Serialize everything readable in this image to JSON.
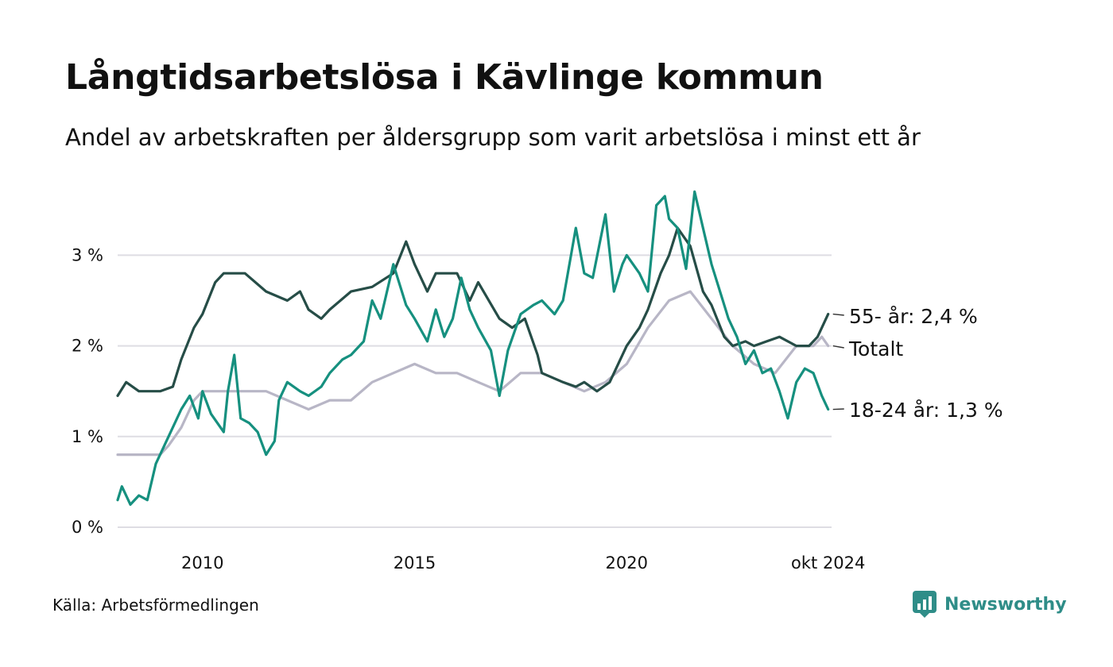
{
  "title": "Långtidsarbetslösa i Kävlinge kommun",
  "subtitle": "Andel av arbetskraften per åldersgrupp som varit arbetslösa i minst ett år",
  "source": "Källa: Arbetsförmedlingen",
  "brand": "Newsworthy",
  "colors": {
    "age55": "#264d47",
    "total": "#b8b6c6",
    "age18_24": "#16907f",
    "grid": "#dedde3",
    "brand": "#2f8d88"
  },
  "chart_data": {
    "type": "line",
    "ylim": [
      0,
      3.8
    ],
    "xlim": [
      2008.0,
      2024.83
    ],
    "y_ticks": [
      {
        "value": 0,
        "label": "0 %"
      },
      {
        "value": 1,
        "label": "1 %"
      },
      {
        "value": 2,
        "label": "2 %"
      },
      {
        "value": 3,
        "label": "3 %"
      }
    ],
    "x_ticks": [
      {
        "value": 2010,
        "label": "2010"
      },
      {
        "value": 2015,
        "label": "2015"
      },
      {
        "value": 2020,
        "label": "2020"
      },
      {
        "value": 2024.75,
        "label": "okt 2024"
      }
    ],
    "grid": true,
    "series": [
      {
        "key": "total",
        "name": "Totalt",
        "end_label": "Totalt",
        "points": [
          [
            2008.0,
            0.8
          ],
          [
            2008.5,
            0.8
          ],
          [
            2009.0,
            0.8
          ],
          [
            2009.2,
            0.9
          ],
          [
            2009.5,
            1.1
          ],
          [
            2009.8,
            1.4
          ],
          [
            2010.0,
            1.5
          ],
          [
            2010.5,
            1.5
          ],
          [
            2011.0,
            1.5
          ],
          [
            2011.5,
            1.5
          ],
          [
            2012.0,
            1.4
          ],
          [
            2012.5,
            1.3
          ],
          [
            2013.0,
            1.4
          ],
          [
            2013.5,
            1.4
          ],
          [
            2014.0,
            1.6
          ],
          [
            2014.5,
            1.7
          ],
          [
            2015.0,
            1.8
          ],
          [
            2015.5,
            1.7
          ],
          [
            2016.0,
            1.7
          ],
          [
            2016.5,
            1.6
          ],
          [
            2017.0,
            1.5
          ],
          [
            2017.5,
            1.7
          ],
          [
            2018.0,
            1.7
          ],
          [
            2018.5,
            1.6
          ],
          [
            2019.0,
            1.5
          ],
          [
            2019.5,
            1.6
          ],
          [
            2020.0,
            1.8
          ],
          [
            2020.5,
            2.2
          ],
          [
            2021.0,
            2.5
          ],
          [
            2021.5,
            2.6
          ],
          [
            2022.0,
            2.3
          ],
          [
            2022.5,
            2.0
          ],
          [
            2023.0,
            1.8
          ],
          [
            2023.5,
            1.7
          ],
          [
            2024.0,
            2.0
          ],
          [
            2024.4,
            2.0
          ],
          [
            2024.6,
            2.1
          ],
          [
            2024.75,
            2.0
          ]
        ]
      },
      {
        "key": "age55",
        "name": "55- år",
        "end_label": "55- år: 2,4 %",
        "points": [
          [
            2008.0,
            1.45
          ],
          [
            2008.2,
            1.6
          ],
          [
            2008.5,
            1.5
          ],
          [
            2009.0,
            1.5
          ],
          [
            2009.3,
            1.55
          ],
          [
            2009.5,
            1.85
          ],
          [
            2009.8,
            2.2
          ],
          [
            2010.0,
            2.35
          ],
          [
            2010.3,
            2.7
          ],
          [
            2010.5,
            2.8
          ],
          [
            2011.0,
            2.8
          ],
          [
            2011.5,
            2.6
          ],
          [
            2012.0,
            2.5
          ],
          [
            2012.3,
            2.6
          ],
          [
            2012.5,
            2.4
          ],
          [
            2012.8,
            2.3
          ],
          [
            2013.0,
            2.4
          ],
          [
            2013.5,
            2.6
          ],
          [
            2014.0,
            2.65
          ],
          [
            2014.5,
            2.8
          ],
          [
            2014.8,
            3.15
          ],
          [
            2015.0,
            2.9
          ],
          [
            2015.3,
            2.6
          ],
          [
            2015.5,
            2.8
          ],
          [
            2016.0,
            2.8
          ],
          [
            2016.3,
            2.5
          ],
          [
            2016.5,
            2.7
          ],
          [
            2017.0,
            2.3
          ],
          [
            2017.3,
            2.2
          ],
          [
            2017.6,
            2.3
          ],
          [
            2017.9,
            1.9
          ],
          [
            2018.0,
            1.7
          ],
          [
            2018.5,
            1.6
          ],
          [
            2018.8,
            1.55
          ],
          [
            2019.0,
            1.6
          ],
          [
            2019.3,
            1.5
          ],
          [
            2019.6,
            1.6
          ],
          [
            2019.8,
            1.8
          ],
          [
            2020.0,
            2.0
          ],
          [
            2020.3,
            2.2
          ],
          [
            2020.5,
            2.4
          ],
          [
            2020.8,
            2.8
          ],
          [
            2021.0,
            3.0
          ],
          [
            2021.2,
            3.3
          ],
          [
            2021.5,
            3.1
          ],
          [
            2021.8,
            2.6
          ],
          [
            2022.0,
            2.45
          ],
          [
            2022.3,
            2.1
          ],
          [
            2022.5,
            2.0
          ],
          [
            2022.8,
            2.05
          ],
          [
            2023.0,
            2.0
          ],
          [
            2023.3,
            2.05
          ],
          [
            2023.6,
            2.1
          ],
          [
            2024.0,
            2.0
          ],
          [
            2024.3,
            2.0
          ],
          [
            2024.5,
            2.1
          ],
          [
            2024.75,
            2.35
          ]
        ]
      },
      {
        "key": "age18_24",
        "name": "18-24 år",
        "end_label": "18-24 år: 1,3 %",
        "points": [
          [
            2008.0,
            0.3
          ],
          [
            2008.1,
            0.45
          ],
          [
            2008.3,
            0.25
          ],
          [
            2008.5,
            0.35
          ],
          [
            2008.7,
            0.3
          ],
          [
            2008.9,
            0.7
          ],
          [
            2009.2,
            1.0
          ],
          [
            2009.5,
            1.3
          ],
          [
            2009.7,
            1.45
          ],
          [
            2009.9,
            1.2
          ],
          [
            2010.0,
            1.5
          ],
          [
            2010.2,
            1.25
          ],
          [
            2010.5,
            1.05
          ],
          [
            2010.6,
            1.5
          ],
          [
            2010.75,
            1.9
          ],
          [
            2010.9,
            1.2
          ],
          [
            2011.1,
            1.15
          ],
          [
            2011.3,
            1.05
          ],
          [
            2011.5,
            0.8
          ],
          [
            2011.7,
            0.95
          ],
          [
            2011.8,
            1.4
          ],
          [
            2012.0,
            1.6
          ],
          [
            2012.3,
            1.5
          ],
          [
            2012.5,
            1.45
          ],
          [
            2012.8,
            1.55
          ],
          [
            2013.0,
            1.7
          ],
          [
            2013.3,
            1.85
          ],
          [
            2013.5,
            1.9
          ],
          [
            2013.8,
            2.05
          ],
          [
            2014.0,
            2.5
          ],
          [
            2014.2,
            2.3
          ],
          [
            2014.5,
            2.9
          ],
          [
            2014.8,
            2.45
          ],
          [
            2015.0,
            2.3
          ],
          [
            2015.3,
            2.05
          ],
          [
            2015.5,
            2.4
          ],
          [
            2015.7,
            2.1
          ],
          [
            2015.9,
            2.3
          ],
          [
            2016.1,
            2.75
          ],
          [
            2016.3,
            2.4
          ],
          [
            2016.5,
            2.2
          ],
          [
            2016.8,
            1.95
          ],
          [
            2017.0,
            1.45
          ],
          [
            2017.2,
            1.95
          ],
          [
            2017.5,
            2.35
          ],
          [
            2017.8,
            2.45
          ],
          [
            2018.0,
            2.5
          ],
          [
            2018.3,
            2.35
          ],
          [
            2018.5,
            2.5
          ],
          [
            2018.8,
            3.3
          ],
          [
            2019.0,
            2.8
          ],
          [
            2019.2,
            2.75
          ],
          [
            2019.5,
            3.45
          ],
          [
            2019.7,
            2.6
          ],
          [
            2019.9,
            2.9
          ],
          [
            2020.0,
            3.0
          ],
          [
            2020.3,
            2.8
          ],
          [
            2020.5,
            2.6
          ],
          [
            2020.7,
            3.55
          ],
          [
            2020.9,
            3.65
          ],
          [
            2021.0,
            3.4
          ],
          [
            2021.2,
            3.3
          ],
          [
            2021.4,
            2.85
          ],
          [
            2021.6,
            3.7
          ],
          [
            2021.8,
            3.3
          ],
          [
            2022.0,
            2.9
          ],
          [
            2022.2,
            2.6
          ],
          [
            2022.4,
            2.3
          ],
          [
            2022.6,
            2.1
          ],
          [
            2022.8,
            1.8
          ],
          [
            2023.0,
            1.95
          ],
          [
            2023.2,
            1.7
          ],
          [
            2023.4,
            1.75
          ],
          [
            2023.6,
            1.5
          ],
          [
            2023.8,
            1.2
          ],
          [
            2024.0,
            1.6
          ],
          [
            2024.2,
            1.75
          ],
          [
            2024.4,
            1.7
          ],
          [
            2024.6,
            1.45
          ],
          [
            2024.75,
            1.3
          ]
        ]
      }
    ]
  }
}
